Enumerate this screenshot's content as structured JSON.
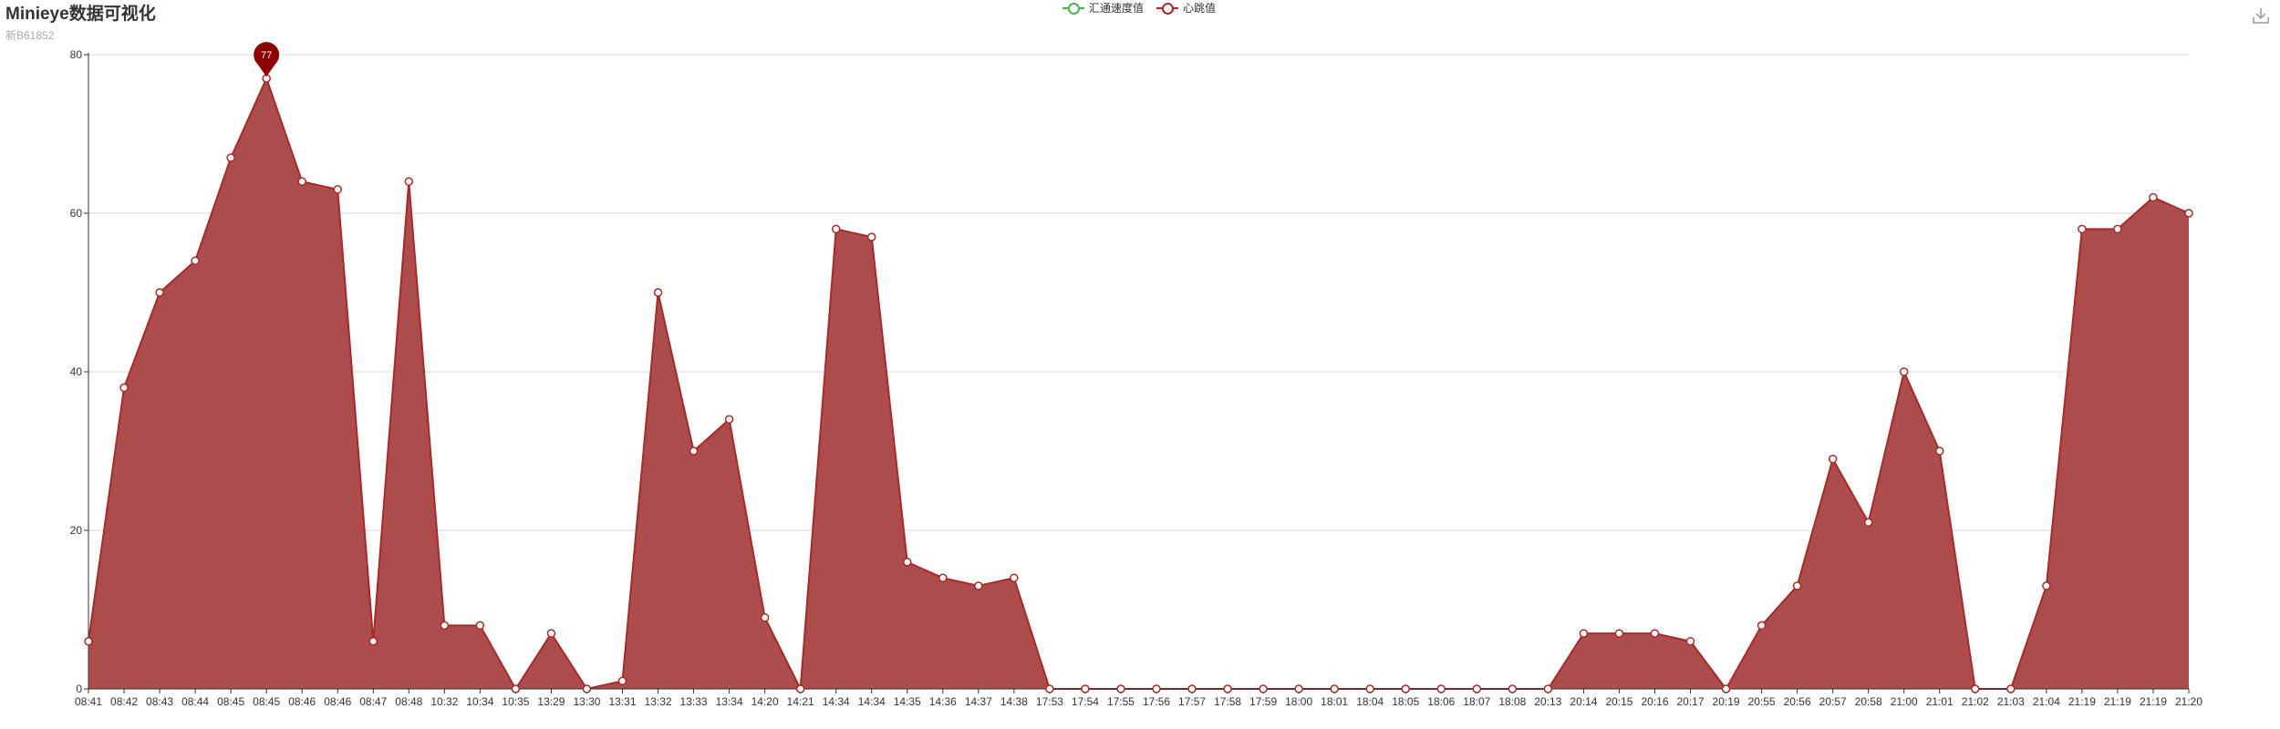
{
  "header": {
    "title": "Minieye数据可视化",
    "subtitle": "新B61852"
  },
  "legend": [
    {
      "label": "汇通速度值",
      "color": "#4cb24c"
    },
    {
      "label": "心跳值",
      "color": "#a52a2a"
    }
  ],
  "toolbar": {
    "download_icon": "download-icon"
  },
  "chart_data": {
    "type": "area",
    "categories": [
      "08:41",
      "08:42",
      "08:43",
      "08:44",
      "08:45",
      "08:45",
      "08:46",
      "08:46",
      "08:47",
      "08:48",
      "10:32",
      "10:34",
      "10:35",
      "13:29",
      "13:30",
      "13:31",
      "13:32",
      "13:33",
      "13:34",
      "14:20",
      "14:21",
      "14:34",
      "14:34",
      "14:35",
      "14:36",
      "14:37",
      "14:38",
      "17:53",
      "17:54",
      "17:55",
      "17:56",
      "17:57",
      "17:58",
      "17:59",
      "18:00",
      "18:01",
      "18:04",
      "18:05",
      "18:06",
      "18:07",
      "18:08",
      "20:13",
      "20:14",
      "20:15",
      "20:16",
      "20:17",
      "20:19",
      "20:55",
      "20:56",
      "20:57",
      "20:58",
      "21:00",
      "21:01",
      "21:02",
      "21:03",
      "21:04",
      "21:19",
      "21:19",
      "21:19",
      "21:20"
    ],
    "series": [
      {
        "name": "心跳值",
        "color": "#a52a2a",
        "fill": "#ad4c4c",
        "values": [
          6,
          38,
          50,
          54,
          67,
          77,
          64,
          63,
          6,
          64,
          8,
          8,
          0,
          7,
          0,
          1,
          50,
          30,
          34,
          9,
          0,
          58,
          57,
          16,
          14,
          13,
          14,
          0,
          0,
          0,
          0,
          0,
          0,
          0,
          0,
          0,
          0,
          0,
          0,
          0,
          0,
          0,
          7,
          7,
          7,
          6,
          0,
          8,
          13,
          29,
          21,
          40,
          30,
          0,
          0,
          13,
          58,
          58,
          62,
          60
        ]
      }
    ],
    "ylim": [
      0,
      80
    ],
    "yticks": [
      0,
      20,
      40,
      60,
      80
    ],
    "grid": true,
    "max_marker": {
      "label": "77",
      "color": "#8b0000"
    }
  }
}
